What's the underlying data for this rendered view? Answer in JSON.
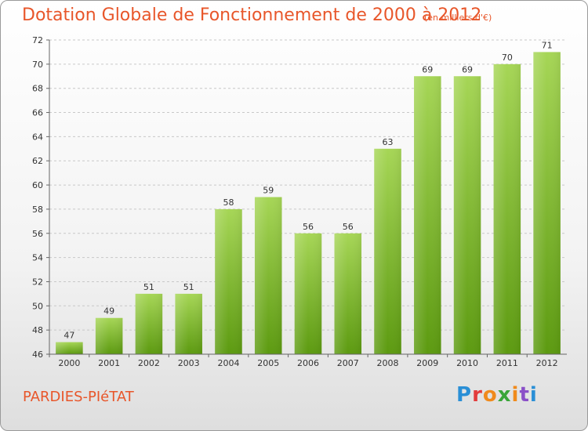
{
  "header": {
    "title": "Dotation Globale de Fonctionnement de 2000 à 2012",
    "unit": "(en milliers d'€)"
  },
  "footer": {
    "commune": "PARDIES-PIéTAT",
    "logo_letters": [
      "P",
      "r",
      "o",
      "x",
      "i",
      "t",
      "i"
    ]
  },
  "colors": {
    "title": "#e8562a",
    "bar_light": "#9fd04e",
    "bar_dark": "#5c9a10"
  },
  "chart_data": {
    "type": "bar",
    "categories": [
      "2000",
      "2001",
      "2002",
      "2003",
      "2004",
      "2005",
      "2006",
      "2007",
      "2008",
      "2009",
      "2010",
      "2011",
      "2012"
    ],
    "values": [
      47,
      49,
      51,
      51,
      58,
      59,
      56,
      56,
      63,
      69,
      69,
      70,
      71
    ],
    "ylim": [
      46,
      72
    ],
    "yticks": [
      46,
      48,
      50,
      52,
      54,
      56,
      58,
      60,
      62,
      64,
      66,
      68,
      70,
      72
    ],
    "grid": true,
    "legend": false
  }
}
